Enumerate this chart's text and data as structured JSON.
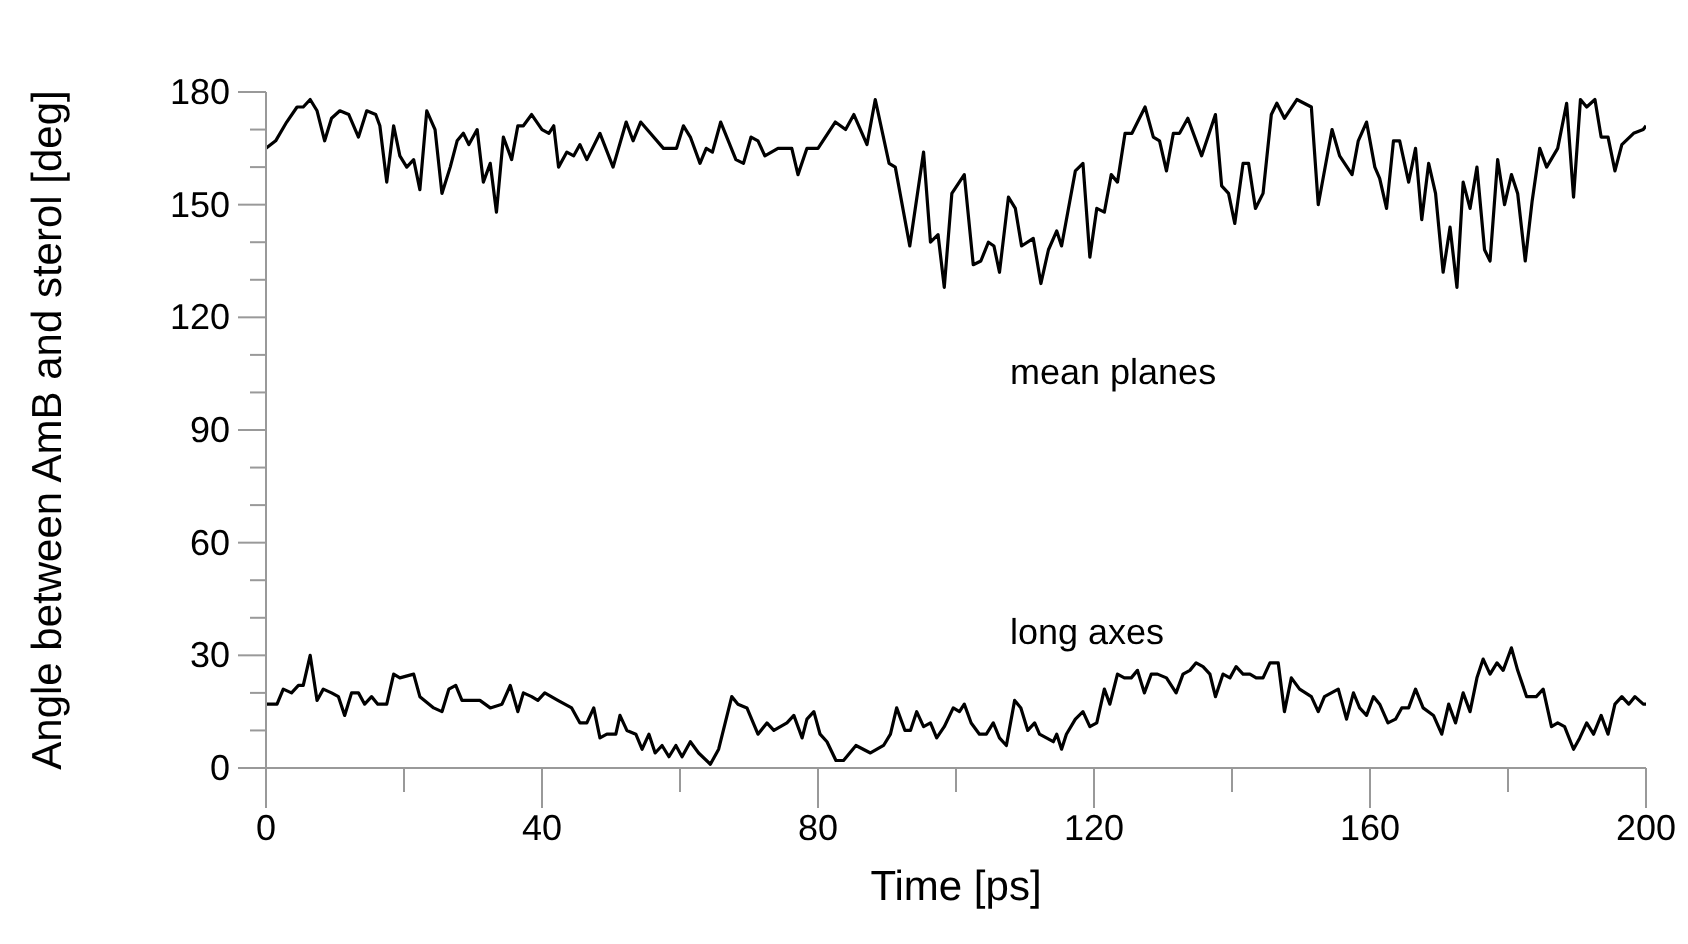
{
  "chart_data": {
    "type": "line",
    "xlabel": "Time [ps]",
    "ylabel": "Angle between AmB and sterol [deg]",
    "xlim": [
      0,
      200
    ],
    "ylim": [
      0,
      180
    ],
    "xticks": [
      0,
      {
        "value": 20,
        "label": null
      },
      40,
      {
        "value": 60,
        "label": null
      },
      80,
      {
        "value": 100,
        "label": null
      },
      120,
      {
        "value": 140,
        "label": null
      },
      160,
      {
        "value": 180,
        "label": null
      },
      200
    ],
    "yticks": [
      0,
      {
        "value": 10,
        "label": null
      },
      {
        "value": 20,
        "label": null
      },
      30,
      {
        "value": 40,
        "label": null
      },
      {
        "value": 50,
        "label": null
      },
      60,
      {
        "value": 70,
        "label": null
      },
      {
        "value": 80,
        "label": null
      },
      90,
      {
        "value": 100,
        "label": null
      },
      {
        "value": 110,
        "label": null
      },
      120,
      {
        "value": 130,
        "label": null
      },
      {
        "value": 140,
        "label": null
      },
      150,
      {
        "value": 160,
        "label": null
      },
      {
        "value": 170,
        "label": null
      },
      180
    ],
    "grid": false,
    "legend": false,
    "marker": "none",
    "line_style": "solid",
    "series": [
      {
        "color": "#000000",
        "x": [
          0,
          1.4,
          3,
          4.5,
          5.4,
          6.4,
          7.4,
          8.5,
          9.5,
          10.7,
          12,
          13.4,
          14.6,
          15.9,
          16.5,
          17.5,
          18.5,
          19.4,
          20.4,
          21.4,
          22.3,
          23.3,
          24.5,
          25.5,
          26.7,
          27.7,
          28.6,
          29.4,
          30.6,
          31.5,
          32.5,
          33.4,
          34.4,
          35.6,
          36.5,
          37.3,
          38.5,
          40,
          41,
          41.7,
          42.4,
          43.6,
          44.6,
          45.5,
          46.5,
          48.4,
          50.3,
          52.2,
          53.2,
          54.3,
          57.6,
          59.5,
          60.5,
          61.5,
          62.9,
          63.8,
          64.7,
          65.9,
          68.1,
          69.2,
          70.3,
          71.3,
          72.3,
          74.2,
          76.2,
          77.1,
          78.4,
          80,
          82.5,
          84,
          85.2,
          87.1,
          88.3,
          90.3,
          91.2,
          93.3,
          95.3,
          96.3,
          97.4,
          98.3,
          99.4,
          101.2,
          102.5,
          103.6,
          104.7,
          105.5,
          106.3,
          107.6,
          108.6,
          109.5,
          111.2,
          112.3,
          113.4,
          114.6,
          115.3,
          117.3,
          118.4,
          119.4,
          120.4,
          121.5,
          122.5,
          123.4,
          124.5,
          125.5,
          127.4,
          128.6,
          129.5,
          130.5,
          131.5,
          132.4,
          133.6,
          135.6,
          137.6,
          138.5,
          139.5,
          140.4,
          141.6,
          142.4,
          143.4,
          144.5,
          145.7,
          146.5,
          147.6,
          149.4,
          151.5,
          152.5,
          154.5,
          155.6,
          157.4,
          158.3,
          159.5,
          160.7,
          161.4,
          162.4,
          163.4,
          164.3,
          165.6,
          166.6,
          167.5,
          168.5,
          169.5,
          170.6,
          171.6,
          172.6,
          173.5,
          174.5,
          175.5,
          176.6,
          177.4,
          178.5,
          179.5,
          180.5,
          181.4,
          182.5,
          183.5,
          184.6,
          185.6,
          187.2,
          188.5,
          189.5,
          190.5,
          191.4,
          192.6,
          193.5,
          194.5,
          195.5,
          196.5,
          198.2,
          199.6,
          200
        ],
        "values": [
          165,
          167,
          172,
          176,
          176,
          178,
          175,
          167,
          173,
          175,
          174,
          168,
          175,
          174,
          171,
          156,
          171,
          163,
          160,
          162,
          154,
          175,
          170,
          153,
          160,
          167,
          169,
          166,
          170,
          156,
          161,
          148,
          168,
          162,
          171,
          171,
          174,
          170,
          169,
          171,
          160,
          164,
          163,
          166,
          162,
          169,
          160,
          172,
          167,
          172,
          165,
          165,
          171,
          168,
          161,
          165,
          164,
          172,
          162,
          161,
          168,
          167,
          163,
          165,
          165,
          158,
          165,
          165,
          172,
          170,
          174,
          166,
          178,
          161,
          160,
          139,
          164,
          140,
          142,
          128,
          153,
          158,
          134,
          135,
          140,
          139,
          132,
          152,
          149,
          139,
          141,
          129,
          138,
          143,
          139,
          159,
          161,
          136,
          149,
          148,
          158,
          156,
          169,
          169,
          176,
          168,
          167,
          159,
          169,
          169,
          173,
          163,
          174,
          155,
          153,
          145,
          161,
          161,
          149,
          153,
          174,
          177,
          173,
          178,
          176,
          150,
          170,
          163,
          158,
          167,
          172,
          160,
          157,
          149,
          167,
          167,
          156,
          165,
          146,
          161,
          153,
          132,
          144,
          128,
          156,
          149,
          160,
          138,
          135,
          162,
          150,
          158,
          153,
          135,
          151,
          165,
          160,
          165,
          177,
          152,
          178,
          176,
          178,
          168,
          168,
          159,
          166,
          169,
          170,
          171
        ]
      },
      {
        "color": "#000000",
        "x": [
          0,
          1.6,
          2.5,
          3.7,
          4.7,
          5.4,
          6.4,
          7.4,
          8.3,
          9.5,
          10.5,
          11.4,
          12.4,
          13.4,
          14.3,
          15.3,
          16.2,
          17.5,
          18.5,
          19.4,
          21.4,
          22.3,
          24.3,
          25.5,
          26.5,
          27.5,
          28.4,
          31,
          32.5,
          34.2,
          35.4,
          36.5,
          37.3,
          38.5,
          39.4,
          40.4,
          42.3,
          43.3,
          44.3,
          45.5,
          46.5,
          47.5,
          48.4,
          49.4,
          50.7,
          51.3,
          52.3,
          53.6,
          54.5,
          55.5,
          56.4,
          57.4,
          58.4,
          59.4,
          60.3,
          61.5,
          62.7,
          64.4,
          65.6,
          67.5,
          68.4,
          69.7,
          71.3,
          72.6,
          73.6,
          75.5,
          76.5,
          77.7,
          78.4,
          79.4,
          80.3,
          81.3,
          82.6,
          83.7,
          85.5,
          87.6,
          89.5,
          90.5,
          91.4,
          92.6,
          93.4,
          94.3,
          95.3,
          96.3,
          97.2,
          98.3,
          99.6,
          100.5,
          101.2,
          102.2,
          103.4,
          104.4,
          105.4,
          106.3,
          107.3,
          108.5,
          109.4,
          110.4,
          111.4,
          112.1,
          113.1,
          114.1,
          114.6,
          115.3,
          116,
          117.3,
          118.4,
          119.4,
          120.4,
          121.5,
          122.3,
          123.4,
          124.4,
          125.4,
          126.3,
          127.3,
          128.3,
          129.2,
          130.5,
          131.2,
          131.9,
          132.9,
          133.9,
          134.8,
          135.8,
          136.8,
          137.6,
          138.7,
          139.7,
          140.6,
          141.6,
          142.6,
          143.5,
          144.5,
          145.5,
          146.7,
          147.6,
          148.6,
          149.8,
          151.5,
          152.5,
          153.4,
          155.4,
          156.6,
          157.6,
          158.5,
          159.5,
          160.5,
          161.4,
          162.6,
          163.7,
          164.6,
          165.6,
          166.6,
          167.7,
          169.2,
          170.4,
          171.4,
          172.4,
          173.5,
          174.5,
          175.5,
          176.4,
          177.4,
          178.4,
          179.3,
          180.5,
          181.4,
          182.7,
          184.1,
          185.1,
          186.3,
          187.2,
          188.2,
          189.5,
          190.4,
          191.4,
          192.4,
          193.5,
          194.5,
          195.5,
          196.5,
          197.5,
          198.4,
          199.6,
          200
        ],
        "values": [
          17,
          17,
          21,
          20,
          22,
          22,
          30,
          18,
          21,
          20,
          19,
          14,
          20,
          20,
          17,
          19,
          17,
          17,
          25,
          24,
          25,
          19,
          16,
          15,
          21,
          22,
          18,
          18,
          16,
          17,
          22,
          15,
          20,
          19,
          18,
          20,
          18,
          17,
          16,
          12,
          12,
          16,
          8,
          9,
          9,
          14,
          10,
          9,
          5,
          9,
          4,
          6,
          3,
          6,
          3,
          7,
          4,
          1,
          5,
          19,
          17,
          16,
          9,
          12,
          10,
          12,
          14,
          8,
          13,
          15,
          9,
          7,
          2,
          2,
          6,
          4,
          6,
          9,
          16,
          10,
          10,
          15,
          11,
          12,
          8,
          11,
          16,
          15,
          17,
          12,
          9,
          9,
          12,
          8,
          6,
          18,
          16,
          10,
          12,
          9,
          8,
          7,
          9,
          5,
          9,
          13,
          15,
          11,
          12,
          21,
          17,
          25,
          24,
          24,
          26,
          20,
          25,
          25,
          24,
          22,
          20,
          25,
          26,
          28,
          27,
          25,
          19,
          25,
          24,
          27,
          25,
          25,
          24,
          24,
          28,
          28,
          15,
          24,
          21,
          19,
          15,
          19,
          21,
          13,
          20,
          16,
          14,
          19,
          17,
          12,
          13,
          16,
          16,
          21,
          16,
          14,
          9,
          17,
          12,
          20,
          15,
          24,
          29,
          25,
          28,
          26,
          32,
          26,
          19,
          19,
          21,
          11,
          12,
          11,
          5,
          8,
          12,
          9,
          14,
          9,
          17,
          19,
          17,
          19,
          17,
          17
        ]
      }
    ],
    "annotations": [
      "mean planes",
      "long axes"
    ]
  }
}
